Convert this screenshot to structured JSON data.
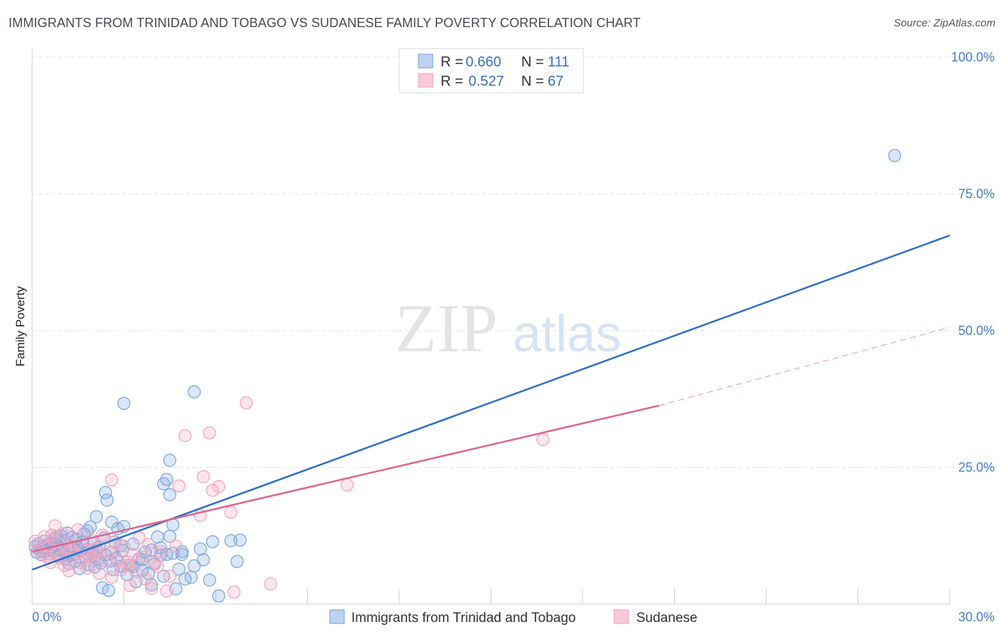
{
  "title": "IMMIGRANTS FROM TRINIDAD AND TOBAGO VS SUDANESE FAMILY POVERTY CORRELATION CHART",
  "source": "Source: ZipAtlas.com",
  "watermark": {
    "zip": "ZIP",
    "atlas": "atlas"
  },
  "chart_data": {
    "type": "scatter",
    "title": "IMMIGRANTS FROM TRINIDAD AND TOBAGO VS SUDANESE FAMILY POVERTY CORRELATION CHART",
    "xlabel": "",
    "ylabel": "Family Poverty",
    "xlim": [
      0,
      30
    ],
    "ylim": [
      0,
      100
    ],
    "x_tick_labels": [
      "0.0%",
      "30.0%"
    ],
    "y_tick_labels": [
      "100.0%",
      "75.0%",
      "50.0%",
      "25.0%"
    ],
    "y_tick_values": [
      100,
      75,
      50,
      25
    ],
    "grid": true,
    "legend_position": "top-center",
    "series": [
      {
        "name": "Immigrants from Trinidad and Tobago",
        "color": "#7fa8e0",
        "line_color": "#2f6fcc",
        "r_label": "R =",
        "r_value": "0.660",
        "n_label": "N =",
        "n_value": "111",
        "trend": {
          "x": [
            0,
            30
          ],
          "y": [
            6.3,
            67.4
          ]
        },
        "points": [
          [
            0.1,
            10.5
          ],
          [
            0.15,
            9.5
          ],
          [
            0.2,
            11
          ],
          [
            0.25,
            10
          ],
          [
            0.3,
            9
          ],
          [
            0.35,
            10.2
          ],
          [
            0.4,
            11.5
          ],
          [
            0.45,
            9.8
          ],
          [
            0.5,
            10.8
          ],
          [
            0.55,
            9.2
          ],
          [
            0.6,
            11.2
          ],
          [
            0.65,
            10.4
          ],
          [
            0.7,
            9.6
          ],
          [
            0.75,
            12
          ],
          [
            0.8,
            10.9
          ],
          [
            0.85,
            8.8
          ],
          [
            0.9,
            9.9
          ],
          [
            0.95,
            12.5
          ],
          [
            1.0,
            10.1
          ],
          [
            1.05,
            11.6
          ],
          [
            1.1,
            9.3
          ],
          [
            1.15,
            13
          ],
          [
            1.2,
            8.9
          ],
          [
            1.25,
            10.6
          ],
          [
            1.3,
            12.2
          ],
          [
            1.35,
            9.1
          ],
          [
            1.4,
            7.8
          ],
          [
            1.45,
            11.9
          ],
          [
            1.5,
            10.3
          ],
          [
            1.55,
            6.5
          ],
          [
            1.6,
            9.7
          ],
          [
            1.65,
            11.3
          ],
          [
            1.7,
            12.8
          ],
          [
            1.75,
            8.6
          ],
          [
            1.8,
            10
          ],
          [
            1.85,
            7.2
          ],
          [
            1.9,
            14.1
          ],
          [
            1.95,
            9.4
          ],
          [
            2.0,
            11.1
          ],
          [
            2.05,
            6.8
          ],
          [
            2.1,
            16
          ],
          [
            2.15,
            8.2
          ],
          [
            2.2,
            10.5
          ],
          [
            2.25,
            7.5
          ],
          [
            2.3,
            3
          ],
          [
            2.35,
            12.1
          ],
          [
            2.4,
            9
          ],
          [
            2.45,
            19
          ],
          [
            2.5,
            2.5
          ],
          [
            2.55,
            7.9
          ],
          [
            2.6,
            15
          ],
          [
            2.65,
            6.3
          ],
          [
            2.7,
            11.4
          ],
          [
            2.75,
            8.4
          ],
          [
            2.8,
            13.8
          ],
          [
            2.9,
            6.9
          ],
          [
            2.95,
            9.8
          ],
          [
            3.0,
            14.2
          ],
          [
            3.1,
            5.4
          ],
          [
            3.2,
            7.1
          ],
          [
            3.3,
            11
          ],
          [
            3.4,
            4.1
          ],
          [
            3.5,
            8.3
          ],
          [
            3.6,
            6.2
          ],
          [
            3.7,
            9.5
          ],
          [
            3.8,
            5.6
          ],
          [
            3.9,
            3.5
          ],
          [
            4.0,
            7.3
          ],
          [
            4.1,
            12.3
          ],
          [
            4.2,
            8.9
          ],
          [
            4.3,
            5.1
          ],
          [
            4.4,
            22.8
          ],
          [
            4.5,
            26.3
          ],
          [
            4.6,
            9.3
          ],
          [
            4.7,
            2.8
          ],
          [
            4.8,
            6.4
          ],
          [
            4.9,
            9.1
          ],
          [
            5.0,
            4.6
          ],
          [
            5.2,
            4.9
          ],
          [
            5.3,
            7
          ],
          [
            5.5,
            10.1
          ],
          [
            5.6,
            8.1
          ],
          [
            5.8,
            4.4
          ],
          [
            6.1,
            1.5
          ],
          [
            6.5,
            11.6
          ],
          [
            6.7,
            7.8
          ],
          [
            6.8,
            11.7
          ],
          [
            3.0,
            36.7
          ],
          [
            4.3,
            22
          ],
          [
            4.5,
            20
          ],
          [
            4.6,
            14.5
          ],
          [
            4.5,
            12.4
          ],
          [
            4.4,
            9.1
          ],
          [
            5.3,
            38.8
          ],
          [
            5.9,
            11.4
          ],
          [
            4.9,
            9.6
          ],
          [
            2.4,
            20.4
          ],
          [
            1.2,
            7.4
          ],
          [
            3.6,
            8.1
          ],
          [
            0.8,
            12.3
          ],
          [
            1.5,
            9.9
          ],
          [
            2.9,
            10.7
          ],
          [
            3.3,
            6.9
          ],
          [
            0.35,
            9.6
          ],
          [
            1.8,
            13.4
          ],
          [
            2.1,
            9.8
          ],
          [
            1.1,
            8.3
          ],
          [
            2.6,
            9.4
          ],
          [
            3.9,
            9.9
          ],
          [
            4.2,
            10.3
          ],
          [
            28.2,
            82
          ]
        ]
      },
      {
        "name": "Sudanese",
        "color": "#f3a6c0",
        "line_color": "#e0648e",
        "r_label": "R =",
        "r_value": "0.527",
        "n_label": "N =",
        "n_value": "67",
        "trend": {
          "x": [
            0,
            20.5
          ],
          "y": [
            9.6,
            36.3
          ]
        },
        "trend_ext": {
          "x": [
            20.5,
            30
          ],
          "y": [
            36.3,
            50.6
          ]
        },
        "points": [
          [
            0.1,
            11.5
          ],
          [
            0.2,
            10
          ],
          [
            0.3,
            9.1
          ],
          [
            0.4,
            12.3
          ],
          [
            0.5,
            8.7
          ],
          [
            0.55,
            10.6
          ],
          [
            0.6,
            7.6
          ],
          [
            0.7,
            11.9
          ],
          [
            0.75,
            14.3
          ],
          [
            0.8,
            9.3
          ],
          [
            0.9,
            8.4
          ],
          [
            1.0,
            12.9
          ],
          [
            1.05,
            7.1
          ],
          [
            1.1,
            10.4
          ],
          [
            1.2,
            6.1
          ],
          [
            1.3,
            11.1
          ],
          [
            1.4,
            8.9
          ],
          [
            1.5,
            13.6
          ],
          [
            1.6,
            7.6
          ],
          [
            1.7,
            9.9
          ],
          [
            1.8,
            6.6
          ],
          [
            1.9,
            11.9
          ],
          [
            2.0,
            8.3
          ],
          [
            2.1,
            10.2
          ],
          [
            2.2,
            5.6
          ],
          [
            2.3,
            12.6
          ],
          [
            2.4,
            7.9
          ],
          [
            2.5,
            9.6
          ],
          [
            2.6,
            4.9
          ],
          [
            2.7,
            11.3
          ],
          [
            2.8,
            8.1
          ],
          [
            2.9,
            6.3
          ],
          [
            3.0,
            10.6
          ],
          [
            3.1,
            7.1
          ],
          [
            3.2,
            3.4
          ],
          [
            3.3,
            9.1
          ],
          [
            3.4,
            5.9
          ],
          [
            3.5,
            12.1
          ],
          [
            3.6,
            8.6
          ],
          [
            3.7,
            4.6
          ],
          [
            3.8,
            10.9
          ],
          [
            3.9,
            2.9
          ],
          [
            4.0,
            7.6
          ],
          [
            4.1,
            6.9
          ],
          [
            4.2,
            9.6
          ],
          [
            4.4,
            2.4
          ],
          [
            4.5,
            5.1
          ],
          [
            4.7,
            10.6
          ],
          [
            4.8,
            21.6
          ],
          [
            5.0,
            30.8
          ],
          [
            5.5,
            16.2
          ],
          [
            5.6,
            23.3
          ],
          [
            5.8,
            31.3
          ],
          [
            5.9,
            20.8
          ],
          [
            6.1,
            21.5
          ],
          [
            6.5,
            16.8
          ],
          [
            6.6,
            2.2
          ],
          [
            7.0,
            36.8
          ],
          [
            7.8,
            3.7
          ],
          [
            10.3,
            21.8
          ],
          [
            16.7,
            30.1
          ],
          [
            2.6,
            22.7
          ],
          [
            0.65,
            12.6
          ],
          [
            1.25,
            10.1
          ],
          [
            2.05,
            9.3
          ],
          [
            3.15,
            7.7
          ],
          [
            1.85,
            8.8
          ]
        ]
      }
    ]
  }
}
